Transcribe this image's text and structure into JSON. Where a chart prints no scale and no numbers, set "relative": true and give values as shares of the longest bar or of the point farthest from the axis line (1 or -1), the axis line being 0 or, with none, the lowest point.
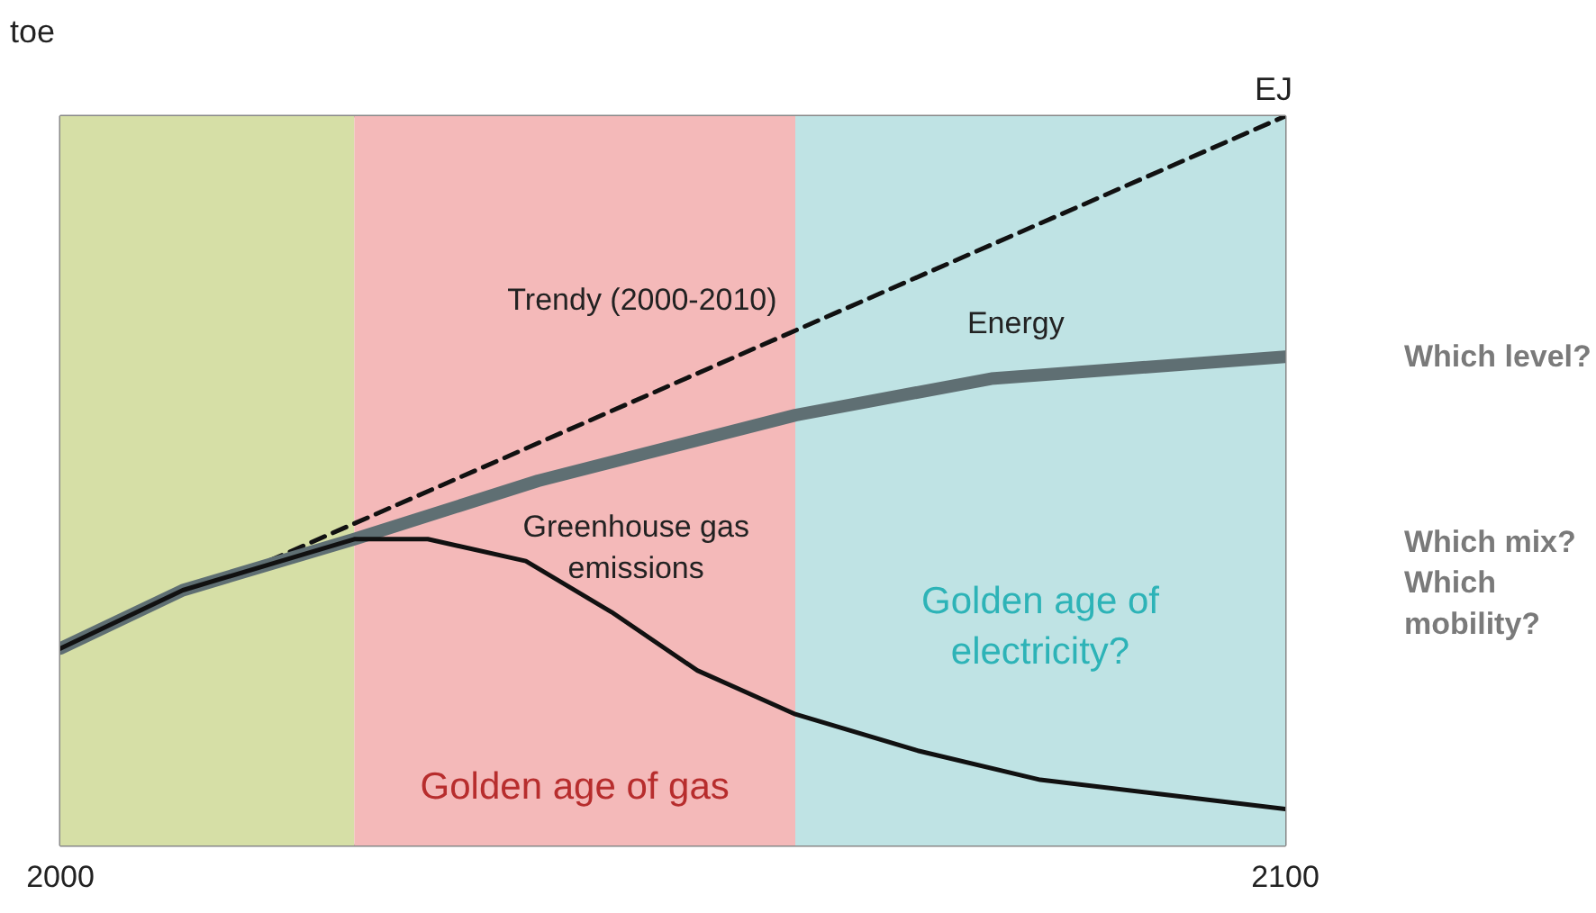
{
  "chart_data": {
    "type": "line",
    "relative": true,
    "ylabel": "toe",
    "y2label": "EJ",
    "xlim": [
      2000,
      2100
    ],
    "xticks": [
      2000,
      2100
    ],
    "grid": false,
    "legend": false,
    "marker": "none",
    "bands": [
      {
        "axis": "x",
        "from": 2000,
        "to": 2024,
        "label": null,
        "color": "#d6dfa6"
      },
      {
        "axis": "x",
        "from": 2024,
        "to": 2060,
        "label": "Golden age of gas",
        "color": "#f4b9b9"
      },
      {
        "axis": "x",
        "from": 2060,
        "to": 2100,
        "label": "Golden age of\nelectricity?",
        "color": "#bfe3e4"
      }
    ],
    "series": [
      {
        "name": "Trendy (2000-2010)",
        "color": "#111111",
        "line_style": "dashed",
        "x": [
          2017,
          2100
        ],
        "values": [
          0.39,
          1.0
        ]
      },
      {
        "name": "Energy",
        "color": "#5f6f73",
        "line_style": "solid",
        "x": [
          2000,
          2010,
          2024,
          2039,
          2060,
          2076,
          2100
        ],
        "values": [
          0.27,
          0.35,
          0.42,
          0.5,
          0.59,
          0.64,
          0.67
        ]
      },
      {
        "name": "Greenhouse gas\nemissions",
        "color": "#111111",
        "line_style": "solid",
        "x": [
          2000,
          2010,
          2024,
          2030,
          2038,
          2045,
          2052,
          2060,
          2070,
          2080,
          2090,
          2100
        ],
        "values": [
          0.27,
          0.35,
          0.42,
          0.42,
          0.39,
          0.32,
          0.24,
          0.18,
          0.13,
          0.09,
          0.07,
          0.05
        ]
      }
    ],
    "annotations": [
      "Which level?",
      "Which mix?\nWhich\nmobility?"
    ]
  }
}
